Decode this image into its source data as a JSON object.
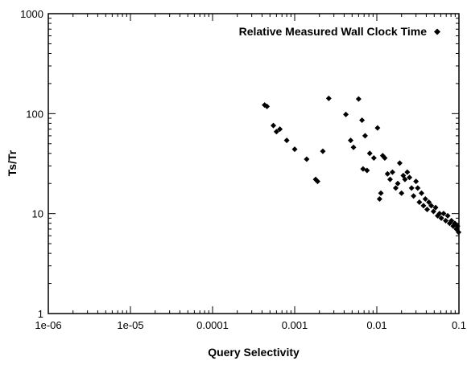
{
  "chart_data": {
    "type": "scatter",
    "xlabel": "Query Selectivity",
    "ylabel": "Ts/Tr",
    "x_scale": "log",
    "y_scale": "log",
    "xlim": [
      1e-06,
      0.1
    ],
    "ylim": [
      1,
      1000
    ],
    "x_ticks": [
      "1e-06",
      "1e-05",
      "0.0001",
      "0.001",
      "0.01",
      "0.1"
    ],
    "y_ticks": [
      "1",
      "10",
      "100",
      "1000"
    ],
    "grid": false,
    "legend_position": "top-right",
    "marker_color": "#000000",
    "series": [
      {
        "name": "Relative Measured Wall Clock Time",
        "marker": "diamond",
        "points": [
          [
            0.00043,
            122
          ],
          [
            0.00046,
            118
          ],
          [
            0.00055,
            76
          ],
          [
            0.0006,
            66
          ],
          [
            0.00066,
            70
          ],
          [
            0.0008,
            54
          ],
          [
            0.001,
            44
          ],
          [
            0.0014,
            35
          ],
          [
            0.0018,
            22
          ],
          [
            0.0019,
            21
          ],
          [
            0.0022,
            42
          ],
          [
            0.0026,
            142
          ],
          [
            0.0042,
            98
          ],
          [
            0.0048,
            54
          ],
          [
            0.0052,
            46
          ],
          [
            0.006,
            140
          ],
          [
            0.0066,
            86
          ],
          [
            0.0068,
            28
          ],
          [
            0.0072,
            60
          ],
          [
            0.0076,
            27
          ],
          [
            0.0082,
            40
          ],
          [
            0.0092,
            36
          ],
          [
            0.0102,
            72
          ],
          [
            0.0108,
            14
          ],
          [
            0.0112,
            16
          ],
          [
            0.0118,
            38
          ],
          [
            0.0125,
            36
          ],
          [
            0.0135,
            25
          ],
          [
            0.0145,
            22
          ],
          [
            0.0155,
            26
          ],
          [
            0.017,
            18
          ],
          [
            0.018,
            20
          ],
          [
            0.019,
            32
          ],
          [
            0.02,
            16
          ],
          [
            0.021,
            24
          ],
          [
            0.022,
            22
          ],
          [
            0.0235,
            26
          ],
          [
            0.025,
            23
          ],
          [
            0.0265,
            18
          ],
          [
            0.028,
            15
          ],
          [
            0.03,
            21
          ],
          [
            0.0315,
            18
          ],
          [
            0.033,
            13
          ],
          [
            0.035,
            16
          ],
          [
            0.037,
            12
          ],
          [
            0.039,
            14
          ],
          [
            0.041,
            11
          ],
          [
            0.043,
            13
          ],
          [
            0.046,
            12
          ],
          [
            0.049,
            10.5
          ],
          [
            0.052,
            11.5
          ],
          [
            0.055,
            9.5
          ],
          [
            0.058,
            10
          ],
          [
            0.061,
            9
          ],
          [
            0.065,
            10
          ],
          [
            0.069,
            8.5
          ],
          [
            0.073,
            9.5
          ],
          [
            0.077,
            8
          ],
          [
            0.081,
            8.5
          ],
          [
            0.085,
            7.5
          ],
          [
            0.089,
            8
          ],
          [
            0.093,
            7
          ],
          [
            0.096,
            7.5
          ],
          [
            0.099,
            6.5
          ]
        ]
      }
    ]
  }
}
